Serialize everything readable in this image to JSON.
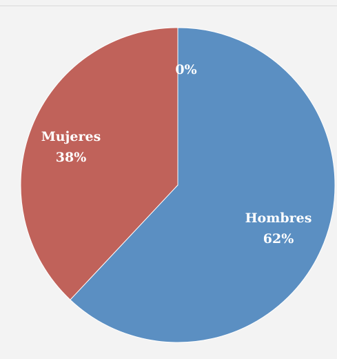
{
  "chart_data": {
    "type": "pie",
    "title": "",
    "slices": [
      {
        "label": "Hombres",
        "value": 62,
        "value_text": "62%",
        "color": "#5b8fc2"
      },
      {
        "label": "Mujeres",
        "value": 38,
        "value_text": "38%",
        "color": "#c0625a"
      },
      {
        "label": "",
        "value": 0,
        "value_text": "0%",
        "color": "#8eb04b"
      }
    ],
    "legend": "none",
    "start_angle": "12 o'clock",
    "direction": "clockwise"
  }
}
